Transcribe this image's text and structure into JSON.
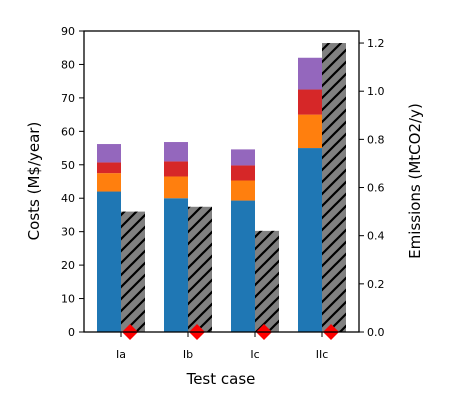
{
  "chart_data": {
    "type": "bar",
    "title": "",
    "xlabel": "Test case",
    "ylabel": "Costs (M$/year)",
    "y2label": "Emissions (MtCO2/y)",
    "categories": [
      "Ia",
      "Ib",
      "Ic",
      "IIc"
    ],
    "ylim": [
      0,
      90
    ],
    "y2lim": [
      0,
      1.25
    ],
    "yticks": [
      "0",
      "10",
      "20",
      "30",
      "40",
      "50",
      "60",
      "70",
      "80",
      "90"
    ],
    "y2ticks": [
      "0.0",
      "0.2",
      "0.4",
      "0.6",
      "0.8",
      "1.0",
      "1.2"
    ],
    "grid": false,
    "cost_series": [
      {
        "color": "#1f77b4",
        "values": [
          42.0,
          40.0,
          39.3,
          55.0
        ]
      },
      {
        "color": "#ff7f0e",
        "values": [
          5.5,
          6.5,
          6.0,
          10.0
        ]
      },
      {
        "color": "#d62728",
        "values": [
          3.2,
          4.5,
          4.5,
          7.5
        ]
      },
      {
        "color": "#9467bd",
        "values": [
          5.5,
          5.8,
          4.8,
          9.5
        ]
      }
    ],
    "emissions": {
      "color": "#808080",
      "hatch": "forward-slash",
      "values": [
        0.5,
        0.52,
        0.42,
        1.2
      ]
    },
    "markers": {
      "color": "#ff0000",
      "shape": "diamond",
      "values": [
        0.0,
        0.0,
        0.0,
        0.0
      ]
    }
  }
}
